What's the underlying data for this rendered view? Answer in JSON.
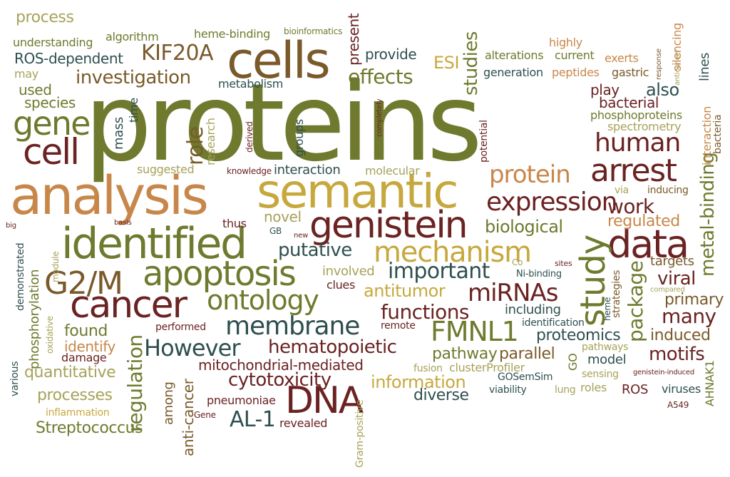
{
  "colors": {
    "olive": "#6f7a2e",
    "brown": "#7a5a2a",
    "maroon": "#6b2222",
    "gold": "#c7a83e",
    "tan": "#c8874a",
    "teal": "#2f4f4f",
    "khaki": "#a7a25a",
    "background": "#ffffff"
  },
  "words": [
    {
      "text": "proteins",
      "color": "olive"
    },
    {
      "text": "analysis",
      "color": "tan"
    },
    {
      "text": "semantic",
      "color": "gold"
    },
    {
      "text": "cells",
      "color": "brown"
    },
    {
      "text": "identified",
      "color": "olive"
    },
    {
      "text": "genistein",
      "color": "maroon"
    },
    {
      "text": "apoptosis",
      "color": "olive"
    },
    {
      "text": "cancer",
      "color": "maroon"
    },
    {
      "text": "cell",
      "color": "maroon"
    },
    {
      "text": "gene",
      "color": "olive"
    },
    {
      "text": "data",
      "color": "maroon"
    },
    {
      "text": "mechanism",
      "color": "gold"
    },
    {
      "text": "expression",
      "color": "maroon"
    },
    {
      "text": "arrest",
      "color": "maroon"
    },
    {
      "text": "protein",
      "color": "tan"
    },
    {
      "text": "human",
      "color": "maroon"
    },
    {
      "text": "study",
      "color": "olive"
    },
    {
      "text": "DNA",
      "color": "maroon"
    },
    {
      "text": "G2/M",
      "color": "brown"
    },
    {
      "text": "ontology",
      "color": "olive"
    },
    {
      "text": "membrane",
      "color": "teal"
    },
    {
      "text": "However",
      "color": "teal"
    },
    {
      "text": "KIF20A",
      "color": "brown"
    },
    {
      "text": "investigation",
      "color": "brown"
    },
    {
      "text": "effects",
      "color": "olive"
    },
    {
      "text": "FMNL1",
      "color": "olive"
    },
    {
      "text": "miRNAs",
      "color": "maroon"
    },
    {
      "text": "functions",
      "color": "maroon"
    },
    {
      "text": "important",
      "color": "teal"
    },
    {
      "text": "hematopoietic",
      "color": "maroon"
    },
    {
      "text": "package",
      "color": "olive"
    },
    {
      "text": "metal-binding",
      "color": "olive"
    },
    {
      "text": "regulation",
      "color": "olive"
    },
    {
      "text": "cytotoxicity",
      "color": "maroon"
    },
    {
      "text": "AL-1",
      "color": "teal"
    },
    {
      "text": "antitumor",
      "color": "gold"
    },
    {
      "text": "work",
      "color": "maroon"
    },
    {
      "text": "role",
      "color": "brown"
    },
    {
      "text": "biological",
      "color": "olive"
    },
    {
      "text": "putative",
      "color": "teal"
    },
    {
      "text": "regulated",
      "color": "tan"
    },
    {
      "text": "viral",
      "color": "maroon"
    },
    {
      "text": "many",
      "color": "maroon"
    },
    {
      "text": "primary",
      "color": "brown"
    },
    {
      "text": "proteomics",
      "color": "teal"
    },
    {
      "text": "induced",
      "color": "brown"
    },
    {
      "text": "motifs",
      "color": "maroon"
    },
    {
      "text": "processes",
      "color": "khaki"
    },
    {
      "text": "quantitative",
      "color": "khaki"
    },
    {
      "text": "Streptococcus",
      "color": "olive"
    },
    {
      "text": "information",
      "color": "gold"
    },
    {
      "text": "diverse",
      "color": "teal"
    },
    {
      "text": "mitochondrial-mediated",
      "color": "maroon"
    },
    {
      "text": "pathway",
      "color": "olive"
    },
    {
      "text": "parallel",
      "color": "brown"
    },
    {
      "text": "found",
      "color": "olive"
    },
    {
      "text": "identify",
      "color": "tan"
    },
    {
      "text": "process",
      "color": "khaki"
    },
    {
      "text": "understanding",
      "color": "olive"
    },
    {
      "text": "ROS-dependent",
      "color": "teal"
    },
    {
      "text": "algorithm",
      "color": "olive"
    },
    {
      "text": "heme-binding",
      "color": "olive"
    },
    {
      "text": "bioinformatics",
      "color": "olive"
    },
    {
      "text": "provide",
      "color": "teal"
    },
    {
      "text": "alterations",
      "color": "olive"
    },
    {
      "text": "current",
      "color": "olive"
    },
    {
      "text": "exerts",
      "color": "tan"
    },
    {
      "text": "highly",
      "color": "tan"
    },
    {
      "text": "ESI",
      "color": "gold"
    },
    {
      "text": "generation",
      "color": "teal"
    },
    {
      "text": "peptides",
      "color": "tan"
    },
    {
      "text": "gastric",
      "color": "brown"
    },
    {
      "text": "also",
      "color": "teal"
    },
    {
      "text": "play",
      "color": "maroon"
    },
    {
      "text": "bacterial",
      "color": "maroon"
    },
    {
      "text": "phosphoproteins",
      "color": "olive"
    },
    {
      "text": "spectrometry",
      "color": "khaki"
    },
    {
      "text": "used",
      "color": "olive"
    },
    {
      "text": "species",
      "color": "olive"
    },
    {
      "text": "may",
      "color": "khaki"
    },
    {
      "text": "metabolism",
      "color": "teal"
    },
    {
      "text": "interaction",
      "color": "teal"
    },
    {
      "text": "molecular",
      "color": "khaki"
    },
    {
      "text": "suggested",
      "color": "khaki"
    },
    {
      "text": "knowledge",
      "color": "maroon"
    },
    {
      "text": "inducing",
      "color": "brown"
    },
    {
      "text": "via",
      "color": "khaki"
    },
    {
      "text": "novel",
      "color": "khaki"
    },
    {
      "text": "thus",
      "color": "maroon"
    },
    {
      "text": "GB",
      "color": "teal"
    },
    {
      "text": "new",
      "color": "maroon"
    },
    {
      "text": "basis",
      "color": "maroon"
    },
    {
      "text": "big",
      "color": "maroon"
    },
    {
      "text": "involved",
      "color": "khaki"
    },
    {
      "text": "clues",
      "color": "maroon"
    },
    {
      "text": "including",
      "color": "teal"
    },
    {
      "text": "Ni-binding",
      "color": "teal"
    },
    {
      "text": "Co",
      "color": "khaki"
    },
    {
      "text": "sites",
      "color": "maroon"
    },
    {
      "text": "targets",
      "color": "brown"
    },
    {
      "text": "compared",
      "color": "khaki"
    },
    {
      "text": "identification",
      "color": "teal"
    },
    {
      "text": "remote",
      "color": "maroon"
    },
    {
      "text": "performed",
      "color": "maroon"
    },
    {
      "text": "damage",
      "color": "maroon"
    },
    {
      "text": "fusion",
      "color": "khaki"
    },
    {
      "text": "clusterProfiler",
      "color": "khaki"
    },
    {
      "text": "GOSemSim",
      "color": "teal"
    },
    {
      "text": "viability",
      "color": "teal"
    },
    {
      "text": "pathways",
      "color": "khaki"
    },
    {
      "text": "model",
      "color": "teal"
    },
    {
      "text": "sensing",
      "color": "khaki"
    },
    {
      "text": "roles",
      "color": "khaki"
    },
    {
      "text": "ROS",
      "color": "maroon"
    },
    {
      "text": "lung",
      "color": "khaki"
    },
    {
      "text": "genistein-induced",
      "color": "maroon"
    },
    {
      "text": "viruses",
      "color": "teal"
    },
    {
      "text": "A549",
      "color": "maroon"
    },
    {
      "text": "inflammation",
      "color": "gold"
    },
    {
      "text": "Gene",
      "color": "maroon"
    },
    {
      "text": "pneumoniae",
      "color": "maroon"
    },
    {
      "text": "revealed",
      "color": "maroon"
    },
    {
      "text": "present",
      "color": "maroon"
    },
    {
      "text": "studies",
      "color": "olive"
    },
    {
      "text": "source",
      "color": "olive"
    },
    {
      "text": "time",
      "color": "teal"
    },
    {
      "text": "mass",
      "color": "teal"
    },
    {
      "text": "research",
      "color": "khaki"
    },
    {
      "text": "derived",
      "color": "maroon"
    },
    {
      "text": "groups",
      "color": "teal"
    },
    {
      "text": "completely",
      "color": "maroon"
    },
    {
      "text": "potential",
      "color": "maroon"
    },
    {
      "text": "response",
      "color": "brown"
    },
    {
      "text": "anticancer",
      "color": "khaki"
    },
    {
      "text": "silencing",
      "color": "tan"
    },
    {
      "text": "lines",
      "color": "teal"
    },
    {
      "text": "interaction",
      "color": "tan"
    },
    {
      "text": "bacteria",
      "color": "brown"
    },
    {
      "text": "demonstrated",
      "color": "teal"
    },
    {
      "text": "phosphorylation",
      "color": "olive"
    },
    {
      "text": "oxidative",
      "color": "khaki"
    },
    {
      "text": "module",
      "color": "khaki"
    },
    {
      "text": "various",
      "color": "teal"
    },
    {
      "text": "among",
      "color": "brown"
    },
    {
      "text": "anti-cancer",
      "color": "brown"
    },
    {
      "text": "Gram-positive",
      "color": "khaki"
    },
    {
      "text": "GO",
      "color": "olive"
    },
    {
      "text": "heme",
      "color": "teal"
    },
    {
      "text": "strategies",
      "color": "brown"
    },
    {
      "text": "AHNAK1",
      "color": "olive"
    }
  ]
}
